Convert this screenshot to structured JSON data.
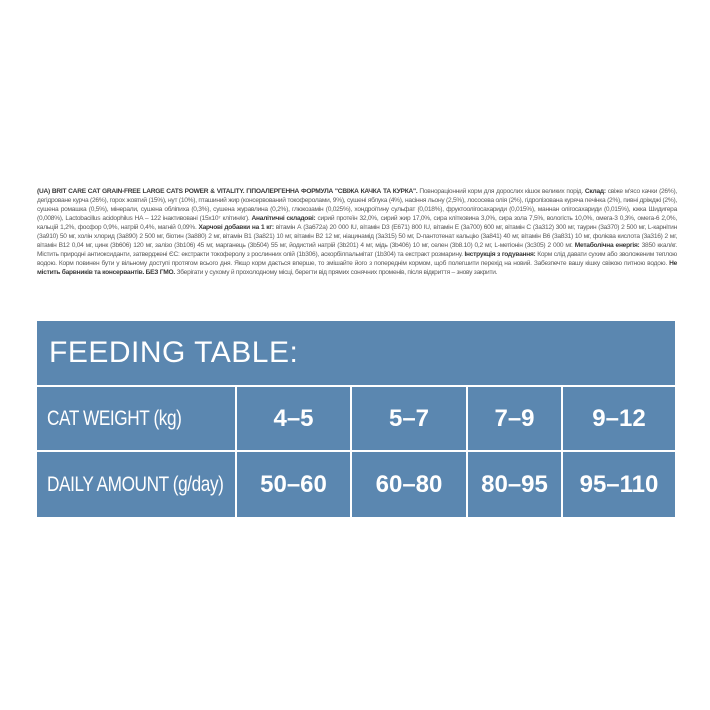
{
  "label": {
    "p1_bold": "(UA) BRIT CARE CAT GRAIN-FREE LARGE CATS POWER & VITALITY. ГІПОАЛЕРГЕННА ФОРМУЛА \"СВІЖА КАЧКА ТА КУРКА\".",
    "p1": " Повнораціонний корм для дорослих кішок великих порід. ",
    "composition_bold": "Склад:",
    "composition": " свіже м'ясо качки (26%), дегідроване курча (26%), горох жовтий (15%), нут (10%), пташиний жир (консервований токоферолами, 9%), сушені яблука (4%), насіння льону (2,5%), лососева олія (2%), гідролізована куряча печінка (2%), пивні дріжджі (2%), сушена ромашка (0,5%), мінерали, сушена обліпиха (0,3%), сушена журавлина (0,2%), глюкозамін (0,025%), хондроїтину сульфат (0,018%), фруктоолігосахариди (0,015%), маннан олігосахариди (0,015%), юкка Шидигера (0,008%), Lactobacillus acidophilus HA – 122 інактивовані (15x10⁷ клітин/кг). ",
    "analysis_bold": "Аналітичні складові:",
    "analysis": " сирий протеїн 32,0%, сирий жир 17,0%, сира клітковина 3,0%, сира зола 7,5%, вологість 10,0%, омега-3 0,3%, омега-6 2,0%, кальцій 1,2%, фосфор 0,9%, натрій 0,4%, магній 0,09%. ",
    "additives_bold": "Харчові добавки на 1 кг:",
    "additives": " вітамін А (3а672а) 20 000 IU, вітамін D3 (E671) 800 IU, вітамін Е (3а700) 600 мг, вітамін С (3а312) 300 мг, таурин (3а370) 2 500 мг, L-карнітин (3а910) 50 мг, холін хлорид (3а890) 2 500 мг, біотин (3а880) 2 мг, вітамін В1 (3а821) 10 мг, вітамін В2 12 мг, ніацинамід (3а315) 50 мг, D-пантотенат кальцію (3а841) 40 мг, вітамін В6 (3а831) 10 мг, фолієва кислота (3а316) 2 мг, вітамін В12 0,04 мг, цинк (3b606) 120 мг, залізо (3b106) 45 мг, марганець (3b504) 55 мг, йодистий натрій (3b201) 4 мг, мідь (3b406) 10 мг, селен (3b8.10) 0,2 мг, L-метіонін (3c305) 2 000 мг. ",
    "energy_bold": "Метаболічна енергія:",
    "energy": " 3850 ккал/кг. Містить природні антиоксиданти, затверджені ЄС: екстракти токоферолу з рослинних олій (1b306), аскорбілпальмітат (1b304) та екстракт розмарину. ",
    "feeding_bold": "Інструкція з годування:",
    "feeding": " Корм слід давати сухим або зволоженим теплою водою. Корм повинен бути у вільному доступі протягом всього дня. Якщо корм дається вперше, то змішайте його з попереднім кормом, щоб полегшити перехід на новий. Забезпечте вашу кішку свіжою питною водою. ",
    "nocolor_bold": "Не містить барвників та консервантів. БЕЗ ГМО.",
    "storage": " Зберігати у сухому й прохолодному місці, берегти від прямих сонячних променів, після відкриття – знову закрити."
  },
  "feeding_table": {
    "title": "FEEDING TABLE:",
    "color": "#5b87b0",
    "rows": [
      {
        "label": "CAT WEIGHT  (kg)",
        "values": [
          "4–5",
          "5–7",
          "7–9",
          "9–12"
        ]
      },
      {
        "label": "DAILY AMOUNT  (g/day)",
        "values": [
          "50–60",
          "60–80",
          "80–95",
          "95–110"
        ]
      }
    ]
  }
}
